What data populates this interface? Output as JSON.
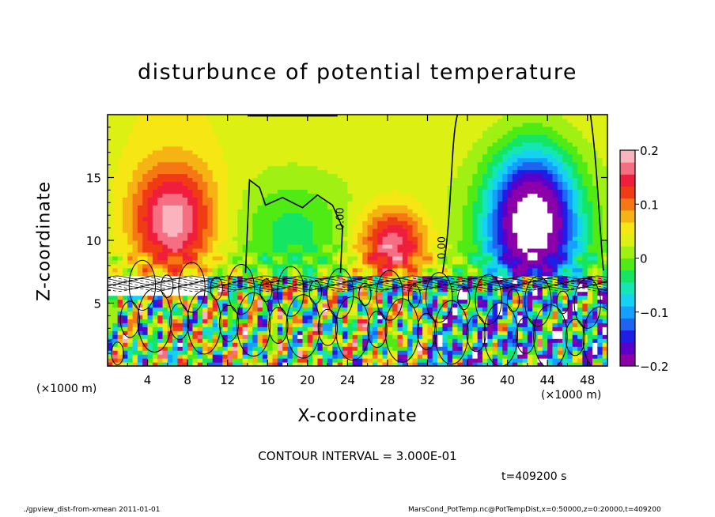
{
  "chart_data": {
    "type": "heatmap",
    "title": "disturbunce of potential temperature",
    "xlabel": "X-coordinate",
    "ylabel": "Z-coordinate",
    "x_unit": "(×1000 m)",
    "xlim": [
      0,
      50
    ],
    "ylim": [
      0,
      20
    ],
    "x_ticks": [
      4,
      8,
      12,
      16,
      20,
      24,
      28,
      32,
      36,
      40,
      44,
      48
    ],
    "y_ticks": [
      5,
      10,
      15
    ],
    "colorbar": {
      "range": [
        -0.2,
        0.2
      ],
      "tick_labels": [
        "0.2",
        "0.1",
        "0",
        "−0.1",
        "−0.2"
      ],
      "tick_values": [
        0.2,
        0.1,
        0,
        -0.1,
        -0.2
      ]
    },
    "contour_labels": [
      "0.00",
      "0.00"
    ],
    "regions": [
      {
        "x_center": 6,
        "z_center": 12,
        "value": 0.15
      },
      {
        "x_center": 18,
        "z_center": 12,
        "value": 0.0
      },
      {
        "x_center": 28,
        "z_center": 10,
        "value": 0.15
      },
      {
        "x_center": 42,
        "z_center": 12,
        "value": -0.2
      }
    ],
    "contour_interval": "CONTOUR INTERVAL = 3.000E-01",
    "time": "t=409200 s"
  },
  "footer": {
    "left": "./gpview_dist-from-xmean  2011-01-01",
    "right": "MarsCond_PotTemp.nc@PotTempDist,x=0:50000,z=0:20000,t=409200"
  },
  "palette": [
    "#8b00a8",
    "#5a00c8",
    "#1e1ee6",
    "#1e64f0",
    "#14a0ff",
    "#14d2f0",
    "#14e6b4",
    "#14e664",
    "#50eb14",
    "#a0f014",
    "#dcf014",
    "#f5e614",
    "#f5b414",
    "#f57814",
    "#f03c14",
    "#f01e3c",
    "#f56e82",
    "#fab4be"
  ]
}
